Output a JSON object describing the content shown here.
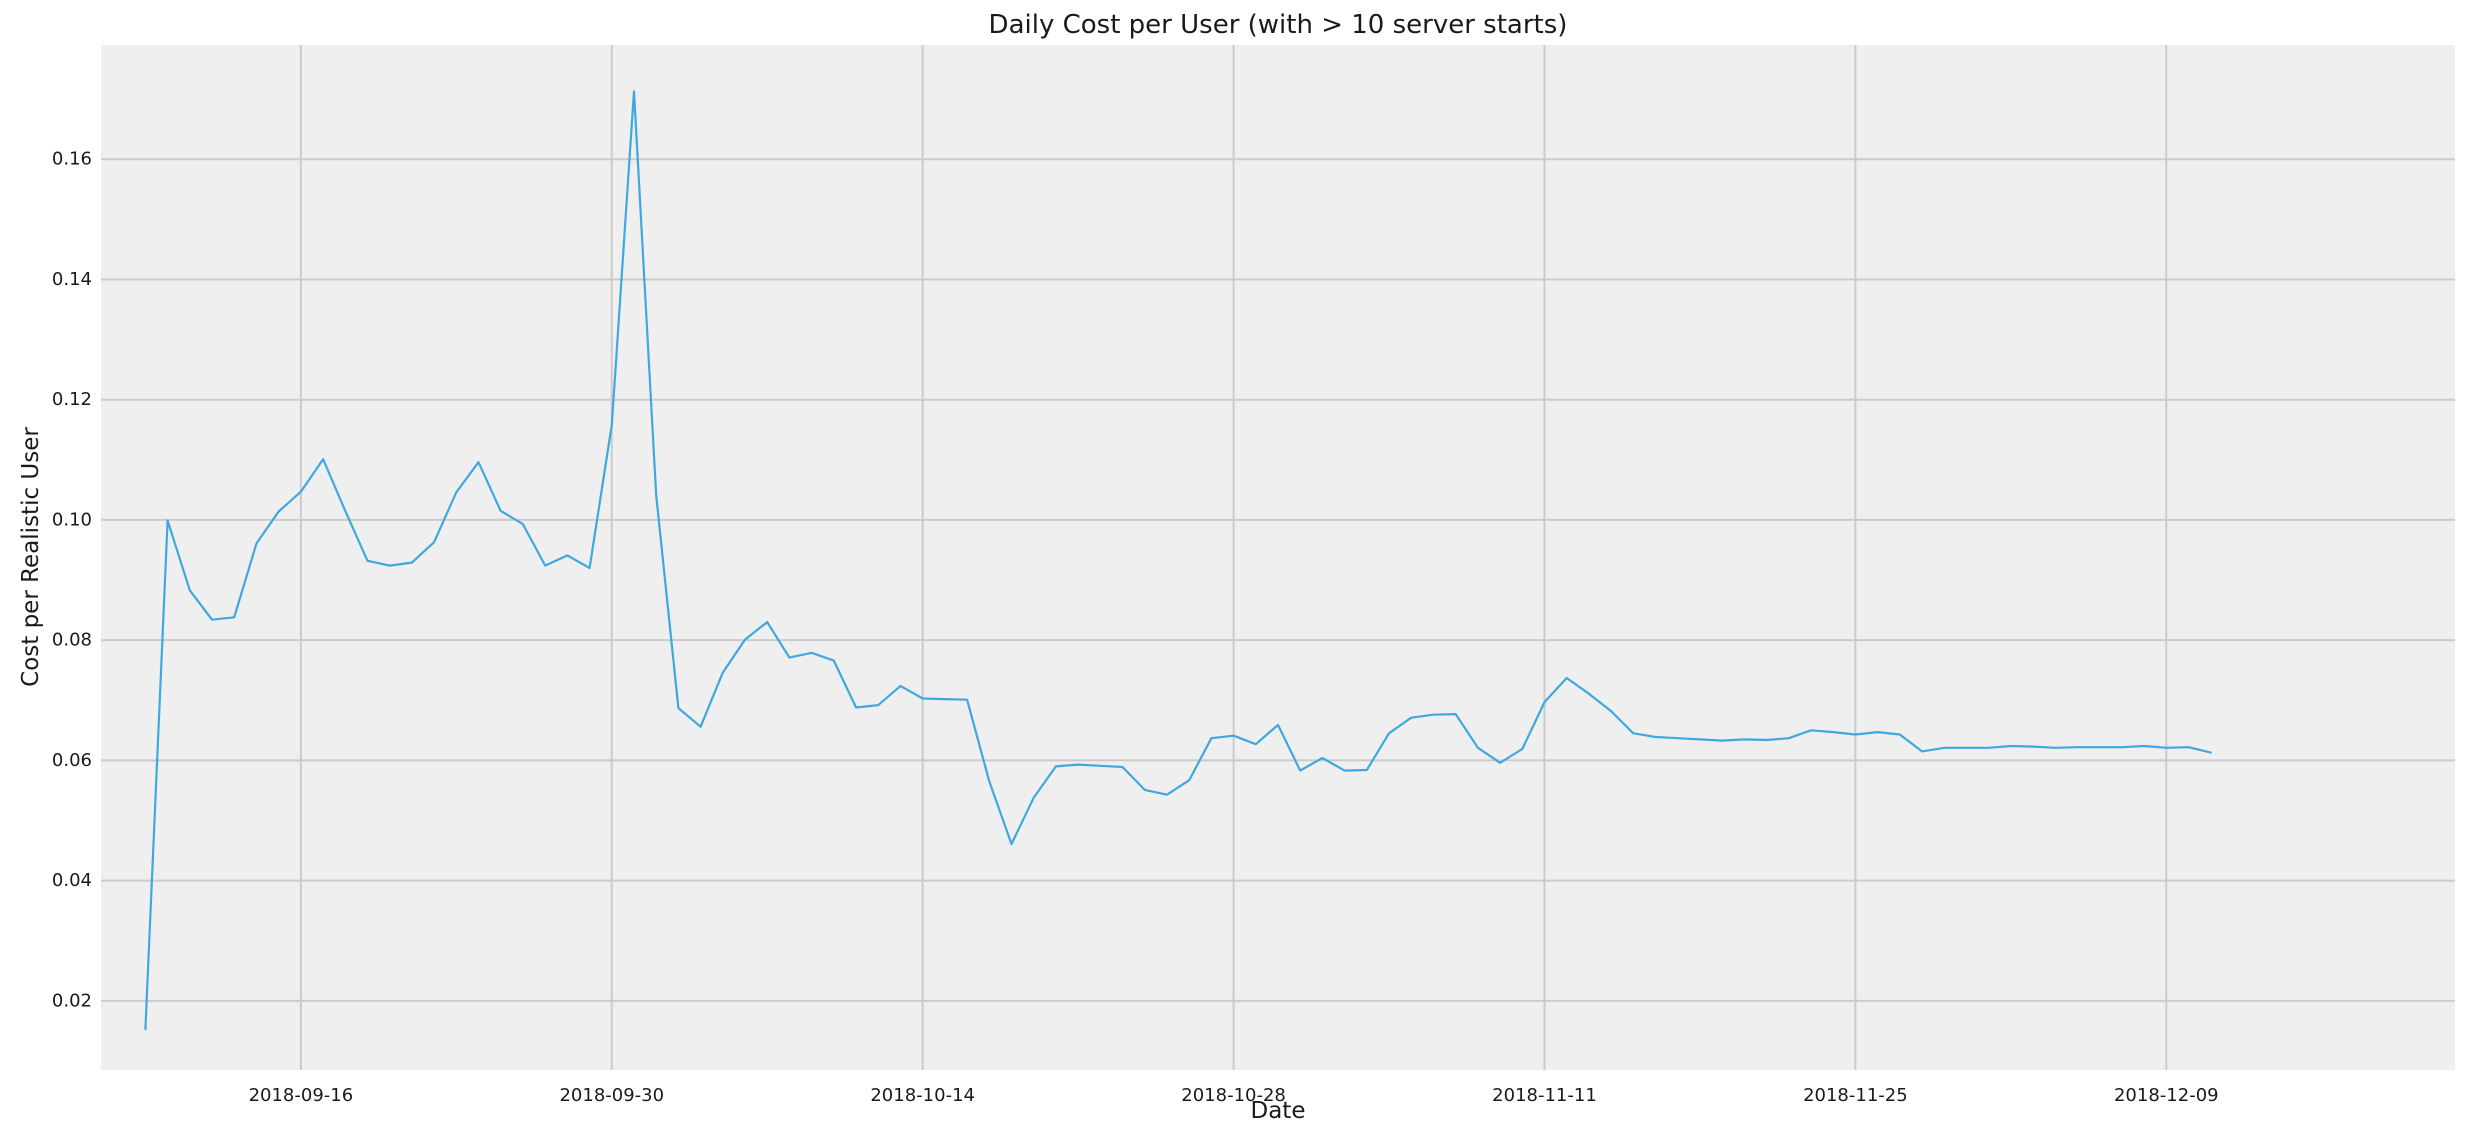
{
  "chart_data": {
    "type": "line",
    "title": "Daily Cost per User (with > 10 server starts)",
    "xlabel": "Date",
    "ylabel": "Cost per Realistic User",
    "x_start": "2018-09-09",
    "xlim": [
      "2018-09-07",
      "2018-12-22"
    ],
    "ylim": [
      0.0085,
      0.179
    ],
    "grid": true,
    "background": "#efefef",
    "line_color": "#3fa8de",
    "x_ticks": [
      "2018-09-16",
      "2018-09-30",
      "2018-10-14",
      "2018-10-28",
      "2018-11-11",
      "2018-11-25",
      "2018-12-09"
    ],
    "y_ticks": [
      0.02,
      0.04,
      0.06,
      0.08,
      0.1,
      0.12,
      0.14,
      0.16
    ],
    "y_tick_labels": [
      "0.02",
      "0.04",
      "0.06",
      "0.08",
      "0.10",
      "0.12",
      "0.14",
      "0.16"
    ],
    "series": [
      {
        "values": [
          0.0153,
          0.0999,
          0.0883,
          0.0834,
          0.0838,
          0.0961,
          0.1014,
          0.1047,
          0.1101,
          0.1015,
          0.0932,
          0.0924,
          0.0929,
          0.0963,
          0.1046,
          0.1096,
          0.1015,
          0.0993,
          0.0924,
          0.0941,
          0.092,
          0.1158,
          0.1713,
          0.1041,
          0.0687,
          0.0656,
          0.0746,
          0.0801,
          0.083,
          0.0771,
          0.0779,
          0.0766,
          0.0688,
          0.0692,
          0.0724,
          0.0703,
          0.0702,
          0.0701,
          0.0565,
          0.0461,
          0.0538,
          0.059,
          0.0593,
          0.0591,
          0.0589,
          0.0551,
          0.0543,
          0.0567,
          0.0637,
          0.0641,
          0.0627,
          0.0659,
          0.0583,
          0.0604,
          0.0583,
          0.0584,
          0.0645,
          0.0671,
          0.0676,
          0.0677,
          0.0621,
          0.0596,
          0.0619,
          0.0697,
          0.0737,
          0.0711,
          0.0682,
          0.0645,
          0.0639,
          0.0637,
          0.0635,
          0.0633,
          0.0635,
          0.0634,
          0.0637,
          0.065,
          0.0647,
          0.0643,
          0.0647,
          0.0643,
          0.0615,
          0.0621,
          0.0621,
          0.0621,
          0.0624,
          0.0623,
          0.0621,
          0.0622,
          0.0622,
          0.0622,
          0.0624,
          0.0621,
          0.0622,
          0.0613
        ]
      }
    ]
  }
}
